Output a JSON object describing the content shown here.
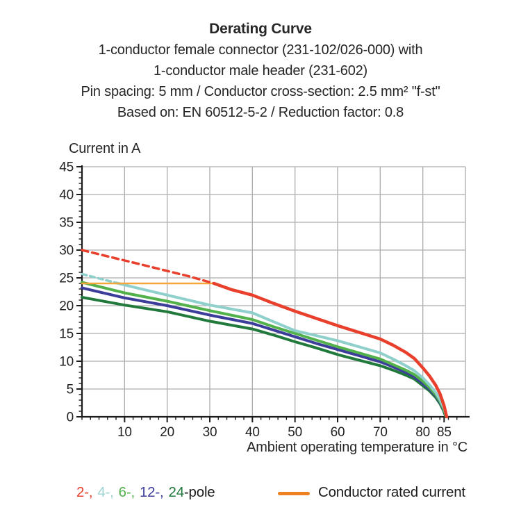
{
  "header": {
    "title": "Derating Curve",
    "line1": "1-conductor female connector (231-102/026-000) with",
    "line2": "1-conductor male header (231-602)",
    "line3": "Pin spacing: 5 mm / Conductor cross-section: 2.5 mm² \"f-st\"",
    "line4": "Based on: EN 60512-5-2 / Reduction factor: 0.8"
  },
  "chart_data": {
    "type": "line",
    "title": "Derating Curve",
    "xlabel": "Ambient operating temperature in °C",
    "ylabel": "Current in A",
    "xlim": [
      0,
      90
    ],
    "ylim": [
      0,
      45
    ],
    "x_ticks": [
      10,
      20,
      30,
      40,
      50,
      60,
      70,
      80,
      85
    ],
    "y_ticks": [
      0,
      5,
      10,
      15,
      20,
      25,
      30,
      35,
      40,
      45
    ],
    "x_minor_step": 2,
    "y_minor_step": 1,
    "x_minor_max": 88,
    "grid": true,
    "legend_position": "bottom",
    "series": [
      {
        "name": "24-pole",
        "color": "#217a3c",
        "width": 4,
        "dash": null,
        "points": [
          [
            0,
            21.5
          ],
          [
            10,
            20.1
          ],
          [
            20,
            18.9
          ],
          [
            30,
            17.2
          ],
          [
            40,
            15.8
          ],
          [
            45,
            14.7
          ],
          [
            50,
            13.5
          ],
          [
            55,
            12.4
          ],
          [
            60,
            11.2
          ],
          [
            65,
            10.2
          ],
          [
            70,
            9.2
          ],
          [
            73,
            8.4
          ],
          [
            76,
            7.5
          ],
          [
            78,
            6.8
          ],
          [
            80,
            5.6
          ],
          [
            81.5,
            4.7
          ],
          [
            83,
            3.5
          ],
          [
            84,
            2.4
          ],
          [
            84.8,
            1.2
          ],
          [
            85.4,
            0
          ]
        ]
      },
      {
        "name": "12-pole",
        "color": "#3c3c9b",
        "width": 4,
        "dash": null,
        "points": [
          [
            0,
            23.2
          ],
          [
            10,
            21.4
          ],
          [
            20,
            20.0
          ],
          [
            30,
            18.3
          ],
          [
            40,
            16.8
          ],
          [
            45,
            15.6
          ],
          [
            50,
            14.4
          ],
          [
            55,
            13.2
          ],
          [
            60,
            12.1
          ],
          [
            65,
            11.0
          ],
          [
            70,
            9.9
          ],
          [
            73,
            9.0
          ],
          [
            76,
            8.0
          ],
          [
            78,
            7.2
          ],
          [
            80,
            6.0
          ],
          [
            81.5,
            5.0
          ],
          [
            83,
            3.8
          ],
          [
            84,
            2.6
          ],
          [
            84.9,
            1.3
          ],
          [
            85.5,
            0
          ]
        ]
      },
      {
        "name": "6-pole",
        "color": "#52b14b",
        "width": 4,
        "dash": null,
        "points": [
          [
            0,
            24.2
          ],
          [
            10,
            22.3
          ],
          [
            20,
            20.8
          ],
          [
            30,
            19.1
          ],
          [
            40,
            17.5
          ],
          [
            45,
            16.2
          ],
          [
            50,
            15.0
          ],
          [
            55,
            13.8
          ],
          [
            60,
            12.6
          ],
          [
            65,
            11.5
          ],
          [
            70,
            10.4
          ],
          [
            73,
            9.4
          ],
          [
            76,
            8.4
          ],
          [
            78,
            7.6
          ],
          [
            80,
            6.4
          ],
          [
            81.5,
            5.3
          ],
          [
            83,
            4.0
          ],
          [
            84,
            2.8
          ],
          [
            84.9,
            1.4
          ],
          [
            85.5,
            0
          ]
        ]
      },
      {
        "name": "4-pole-dashed",
        "color": "#8fd0cc",
        "width": 3.5,
        "dash": "7 5",
        "points": [
          [
            0,
            25.7
          ],
          [
            4,
            24.9
          ],
          [
            8,
            24.1
          ]
        ]
      },
      {
        "name": "4-pole",
        "color": "#8fd0cc",
        "width": 4,
        "dash": null,
        "points": [
          [
            8,
            24.1
          ],
          [
            15,
            22.8
          ],
          [
            20,
            21.9
          ],
          [
            30,
            20.1
          ],
          [
            40,
            18.7
          ],
          [
            45,
            17.1
          ],
          [
            50,
            15.5
          ],
          [
            55,
            14.6
          ],
          [
            60,
            13.7
          ],
          [
            65,
            12.6
          ],
          [
            70,
            11.5
          ],
          [
            73,
            10.4
          ],
          [
            76,
            9.2
          ],
          [
            78,
            8.3
          ],
          [
            80,
            7.0
          ],
          [
            81.5,
            5.8
          ],
          [
            83,
            4.4
          ],
          [
            84,
            3.1
          ],
          [
            85,
            1.5
          ],
          [
            85.6,
            0
          ]
        ]
      },
      {
        "name": "conductor-rated-current",
        "color": "#f3a738",
        "width": 2.6,
        "dash": null,
        "points": [
          [
            0,
            24
          ],
          [
            31,
            24
          ]
        ]
      },
      {
        "name": "2-pole-dashed",
        "color": "#e8402c",
        "width": 3.5,
        "dash": "9 6",
        "points": [
          [
            0,
            30
          ],
          [
            8,
            28.5
          ],
          [
            15,
            27.2
          ],
          [
            25,
            25.3
          ],
          [
            31,
            24
          ]
        ]
      },
      {
        "name": "2-pole",
        "color": "#e8402c",
        "width": 4.5,
        "dash": null,
        "points": [
          [
            31,
            24
          ],
          [
            35,
            22.9
          ],
          [
            40,
            21.9
          ],
          [
            45,
            20.4
          ],
          [
            50,
            19.0
          ],
          [
            55,
            17.7
          ],
          [
            60,
            16.4
          ],
          [
            65,
            15.2
          ],
          [
            70,
            14.0
          ],
          [
            73,
            12.9
          ],
          [
            76,
            11.6
          ],
          [
            78,
            10.5
          ],
          [
            80,
            8.8
          ],
          [
            81.5,
            7.4
          ],
          [
            83,
            5.7
          ],
          [
            84,
            4.2
          ],
          [
            85,
            2.0
          ],
          [
            85.6,
            0
          ]
        ]
      }
    ]
  },
  "legend": {
    "poles": [
      {
        "label": "2-,",
        "color": "#e8402c"
      },
      {
        "label": "4-,",
        "color": "#9ed3d0"
      },
      {
        "label": "6-,",
        "color": "#52b14b"
      },
      {
        "label": "12-,",
        "color": "#3c3c9b"
      },
      {
        "label": "24",
        "color": "#217a3c"
      }
    ],
    "poles_suffix": "-pole",
    "rated_label": "Conductor rated current",
    "rated_color": "#ef8220"
  },
  "colors": {
    "grid": "#acacac",
    "axis": "#1b1b1b",
    "text": "#262626"
  }
}
